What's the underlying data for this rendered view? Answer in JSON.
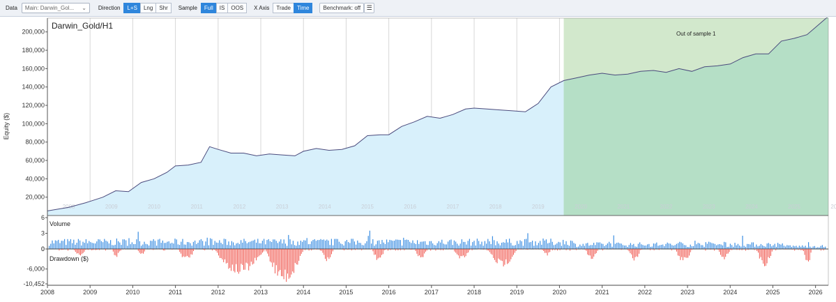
{
  "toolbar": {
    "data_label": "Data",
    "data_select": "Main: Darwin_Gol...",
    "direction_label": "Direction",
    "direction_options": [
      "L+S",
      "Lng",
      "Shr"
    ],
    "direction_selected": "L+S",
    "sample_label": "Sample",
    "sample_options": [
      "Full",
      "IS",
      "OOS"
    ],
    "sample_selected": "Full",
    "xaxis_label": "X Axis",
    "xaxis_options": [
      "Trade",
      "Time"
    ],
    "xaxis_selected": "Time",
    "benchmark_button": "Benchmark: off",
    "menu_icon": "menu-icon"
  },
  "chart_data": [
    {
      "type": "area",
      "title": "Darwin_Gold/H1",
      "ylabel": "Equity ($)",
      "xlim": [
        2008.0,
        2026.3
      ],
      "ylim": [
        0,
        215000
      ],
      "y_ticks": [
        "20,000",
        "40,000",
        "60,000",
        "80,000",
        "100,000",
        "120,000",
        "140,000",
        "160,000",
        "180,000",
        "200,000"
      ],
      "x_ticks": [
        "2008",
        "2009",
        "2010",
        "2011",
        "2012",
        "2013",
        "2014",
        "2015",
        "2016",
        "2017",
        "2018",
        "2019",
        "2020",
        "2021",
        "2022",
        "2023",
        "2024",
        "2025",
        "2026"
      ],
      "oos_region": {
        "label": "Out of sample 1",
        "start": 2020.1,
        "end": 2026.3
      },
      "series": [
        {
          "x": [
            2008.0,
            2008.5,
            2008.9,
            2009.3,
            2009.6,
            2009.9,
            2010.2,
            2010.5,
            2010.8,
            2011.0,
            2011.3,
            2011.6,
            2011.8,
            2012.0,
            2012.3,
            2012.6,
            2012.9,
            2013.2,
            2013.5,
            2013.8,
            2014.0,
            2014.3,
            2014.6,
            2014.9,
            2015.2,
            2015.5,
            2015.8,
            2016.0,
            2016.3,
            2016.6,
            2016.9,
            2017.2,
            2017.5,
            2017.8,
            2018.0,
            2018.3,
            2018.6,
            2018.9,
            2019.2,
            2019.5,
            2019.8,
            2020.1,
            2020.4,
            2020.7,
            2021.0,
            2021.3,
            2021.6,
            2021.9,
            2022.2,
            2022.5,
            2022.8,
            2023.1,
            2023.4,
            2023.7,
            2024.0,
            2024.3,
            2024.6,
            2024.9,
            2025.2,
            2025.5,
            2025.8,
            2026.0,
            2026.3
          ],
          "y": [
            5000,
            9000,
            14000,
            20000,
            27000,
            26000,
            36000,
            40000,
            47000,
            54000,
            55000,
            58000,
            75000,
            72000,
            68000,
            68000,
            65000,
            67000,
            66000,
            65000,
            70000,
            73000,
            71000,
            72000,
            76000,
            87000,
            88000,
            88000,
            97000,
            102000,
            108000,
            106000,
            110000,
            116000,
            117000,
            116000,
            115000,
            114000,
            113000,
            122000,
            140000,
            147000,
            150000,
            153000,
            155000,
            153000,
            154000,
            157000,
            158000,
            156000,
            160000,
            157000,
            162000,
            163000,
            165000,
            172000,
            176000,
            176000,
            190000,
            193000,
            197000,
            205000,
            217000
          ]
        }
      ]
    },
    {
      "type": "bar",
      "title": "Volume",
      "y_ticks": [
        "0",
        "3",
        "6"
      ],
      "ylim": [
        0,
        6
      ]
    },
    {
      "type": "bar",
      "title": "Drawdown ($)",
      "y_ticks": [
        "0",
        "-6,000",
        "-10,452"
      ],
      "ylim": [
        -10452,
        0
      ],
      "max_drawdown": -10452
    }
  ],
  "colors": {
    "equity_line": "#4a4a7c",
    "is_fill": "#d8f0fb",
    "oos_fill": "#b5dfc6",
    "volume_bar": "#3b8ee2",
    "drawdown_bar": "#f0584f"
  }
}
